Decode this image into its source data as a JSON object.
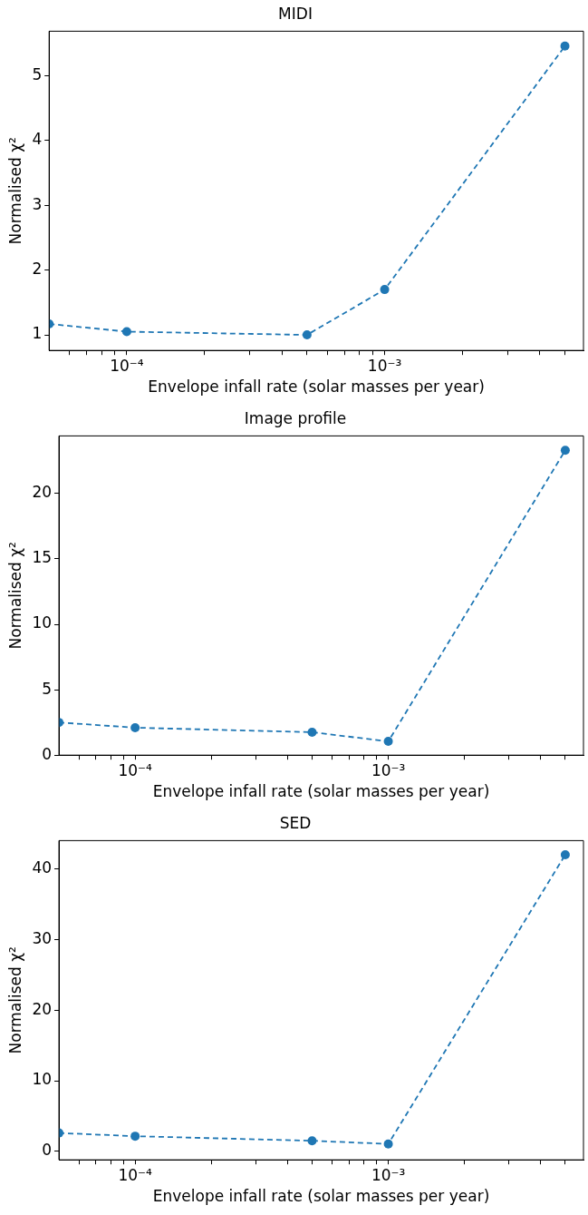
{
  "chart_data": [
    {
      "type": "line",
      "title": "MIDI",
      "xlabel": "Envelope infall rate (solar masses per year)",
      "ylabel": "Normalised χ²",
      "log": "x",
      "marker": "circle",
      "line_style": "dashed",
      "x": [
        5e-05,
        0.0001,
        0.0005,
        0.001,
        0.005
      ],
      "series": [
        {
          "color": "#1f77b4",
          "values": [
            1.17,
            1.05,
            1.0,
            1.7,
            5.46
          ]
        }
      ],
      "xlim": [
        5e-05,
        0.0059
      ],
      "ylim": [
        0.76,
        5.69
      ],
      "xticks": [
        {
          "value": 6e-05,
          "label": null
        },
        {
          "value": 7e-05,
          "label": null
        },
        {
          "value": 8e-05,
          "label": null
        },
        {
          "value": 9e-05,
          "label": null
        },
        {
          "value": 0.0001,
          "label": "10⁻⁴"
        },
        {
          "value": 0.0002,
          "label": null
        },
        {
          "value": 0.0003,
          "label": null
        },
        {
          "value": 0.0004,
          "label": null
        },
        {
          "value": 0.0005,
          "label": null
        },
        {
          "value": 0.0006,
          "label": null
        },
        {
          "value": 0.0007,
          "label": null
        },
        {
          "value": 0.0008,
          "label": null
        },
        {
          "value": 0.0009,
          "label": null
        },
        {
          "value": 0.001,
          "label": "10⁻³"
        },
        {
          "value": 0.002,
          "label": null
        },
        {
          "value": 0.003,
          "label": null
        },
        {
          "value": 0.004,
          "label": null
        },
        {
          "value": 0.005,
          "label": null
        }
      ],
      "yticks": [
        1,
        2,
        3,
        4,
        5
      ]
    },
    {
      "type": "line",
      "title": "Image profile",
      "xlabel": "Envelope infall rate (solar masses per year)",
      "ylabel": "Normalised χ²",
      "log": "x",
      "marker": "circle",
      "line_style": "dashed",
      "x": [
        5e-05,
        0.0001,
        0.0005,
        0.001,
        0.005
      ],
      "series": [
        {
          "color": "#1f77b4",
          "values": [
            2.5,
            2.1,
            1.75,
            1.05,
            23.3
          ]
        }
      ],
      "xlim": [
        5e-05,
        0.0059
      ],
      "ylim": [
        0,
        24.4
      ],
      "xticks": [
        {
          "value": 6e-05,
          "label": null
        },
        {
          "value": 7e-05,
          "label": null
        },
        {
          "value": 8e-05,
          "label": null
        },
        {
          "value": 9e-05,
          "label": null
        },
        {
          "value": 0.0001,
          "label": "10⁻⁴"
        },
        {
          "value": 0.0002,
          "label": null
        },
        {
          "value": 0.0003,
          "label": null
        },
        {
          "value": 0.0004,
          "label": null
        },
        {
          "value": 0.0005,
          "label": null
        },
        {
          "value": 0.0006,
          "label": null
        },
        {
          "value": 0.0007,
          "label": null
        },
        {
          "value": 0.0008,
          "label": null
        },
        {
          "value": 0.0009,
          "label": null
        },
        {
          "value": 0.001,
          "label": "10⁻³"
        },
        {
          "value": 0.002,
          "label": null
        },
        {
          "value": 0.003,
          "label": null
        },
        {
          "value": 0.004,
          "label": null
        },
        {
          "value": 0.005,
          "label": null
        }
      ],
      "yticks": [
        0,
        5,
        10,
        15,
        20
      ]
    },
    {
      "type": "line",
      "title": "SED",
      "xlabel": "Envelope infall rate (solar masses per year)",
      "ylabel": "Normalised χ²",
      "log": "x",
      "marker": "circle",
      "line_style": "dashed",
      "x": [
        5e-05,
        0.0001,
        0.0005,
        0.001,
        0.005
      ],
      "series": [
        {
          "color": "#1f77b4",
          "values": [
            2.6,
            2.15,
            1.5,
            1.05,
            42.0
          ]
        }
      ],
      "xlim": [
        5e-05,
        0.0059
      ],
      "ylim": [
        -1.2,
        44
      ],
      "xticks": [
        {
          "value": 6e-05,
          "label": null
        },
        {
          "value": 7e-05,
          "label": null
        },
        {
          "value": 8e-05,
          "label": null
        },
        {
          "value": 9e-05,
          "label": null
        },
        {
          "value": 0.0001,
          "label": "10⁻⁴"
        },
        {
          "value": 0.0002,
          "label": null
        },
        {
          "value": 0.0003,
          "label": null
        },
        {
          "value": 0.0004,
          "label": null
        },
        {
          "value": 0.0005,
          "label": null
        },
        {
          "value": 0.0006,
          "label": null
        },
        {
          "value": 0.0007,
          "label": null
        },
        {
          "value": 0.0008,
          "label": null
        },
        {
          "value": 0.0009,
          "label": null
        },
        {
          "value": 0.001,
          "label": "10⁻³"
        },
        {
          "value": 0.002,
          "label": null
        },
        {
          "value": 0.003,
          "label": null
        },
        {
          "value": 0.004,
          "label": null
        },
        {
          "value": 0.005,
          "label": null
        }
      ],
      "yticks": [
        0,
        10,
        20,
        30,
        40
      ]
    }
  ]
}
